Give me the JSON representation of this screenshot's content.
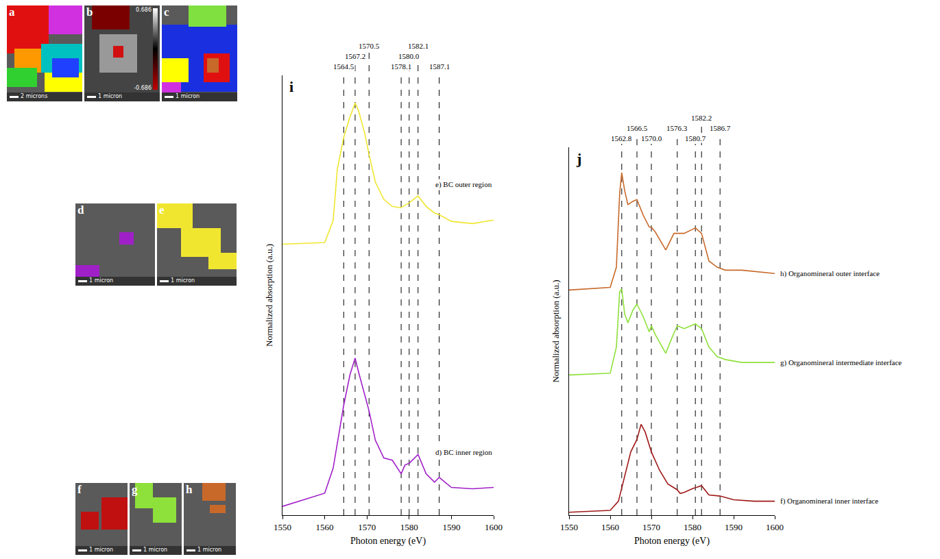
{
  "chart_data": [
    {
      "panel": "i",
      "type": "line",
      "xlabel": "Photon energy (eV)",
      "ylabel": "Normalized absorption (a.u.)",
      "xlim": [
        1550,
        1600
      ],
      "xticks": [
        1550,
        1560,
        1570,
        1580,
        1590,
        1600
      ],
      "ylim": [
        0,
        10
      ],
      "yticks": [],
      "tick_labels": "x",
      "grid": false,
      "reference_lines": [
        {
          "value": 1564.5,
          "label": "1564.5"
        },
        {
          "value": 1567.2,
          "label": "1567.2"
        },
        {
          "value": 1570.5,
          "label": "1570.5"
        },
        {
          "value": 1578.1,
          "label": "1578.1"
        },
        {
          "value": 1580.0,
          "label": "1580.0"
        },
        {
          "value": 1582.1,
          "label": "1582.1"
        },
        {
          "value": 1587.1,
          "label": "1587.1"
        }
      ],
      "series": [
        {
          "name": "e) BC outer region",
          "color": "#f0e630",
          "line_style": "solid",
          "x": [
            1550,
            1560,
            1562,
            1563,
            1564.5,
            1566,
            1567.2,
            1568,
            1569.5,
            1570.5,
            1572,
            1574,
            1576,
            1578,
            1580,
            1582.1,
            1584,
            1586,
            1587.1,
            1590,
            1595,
            1600
          ],
          "values": [
            6.16,
            6.2,
            6.7,
            7.88,
            8.59,
            9.06,
            9.37,
            9.2,
            8.67,
            8.2,
            7.57,
            7.18,
            7.02,
            6.99,
            7.1,
            7.26,
            7.02,
            6.87,
            6.83,
            6.68,
            6.63,
            6.71
          ]
        },
        {
          "name": "d) BC inner region",
          "color": "#a020c8",
          "line_style": "solid",
          "x": [
            1550,
            1560,
            1562,
            1564.5,
            1566,
            1567.2,
            1568,
            1570.5,
            1572,
            1574,
            1576,
            1578.1,
            1579,
            1580,
            1582.1,
            1584,
            1586,
            1587.1,
            1590,
            1595,
            1600
          ],
          "values": [
            0.2,
            0.5,
            1.07,
            2.5,
            3.2,
            3.57,
            3.26,
            2.37,
            1.7,
            1.3,
            1.25,
            0.94,
            1.14,
            1.18,
            1.38,
            0.94,
            0.75,
            0.86,
            0.63,
            0.6,
            0.63
          ]
        }
      ]
    },
    {
      "panel": "j",
      "type": "line",
      "xlabel": "Photon energy (eV)",
      "ylabel": "Normalized absorption (a.u.)",
      "xlim": [
        1550,
        1600
      ],
      "xticks": [
        1550,
        1560,
        1570,
        1580,
        1590,
        1600
      ],
      "ylim": [
        0,
        10
      ],
      "yticks": [],
      "tick_labels": "x",
      "grid": false,
      "reference_lines": [
        {
          "value": 1562.8,
          "label": "1562.8"
        },
        {
          "value": 1566.5,
          "label": "1566.5"
        },
        {
          "value": 1570.0,
          "label": "1570.0"
        },
        {
          "value": 1576.3,
          "label": "1576.3"
        },
        {
          "value": 1580.7,
          "label": "1580.7"
        },
        {
          "value": 1582.2,
          "label": "1582.2"
        },
        {
          "value": 1586.7,
          "label": "1586.7"
        }
      ],
      "series": [
        {
          "name": "h) Organomineral outer interface",
          "color": "#c8692a",
          "line_style": "solid",
          "x": [
            1550,
            1560,
            1561.5,
            1562.3,
            1562.8,
            1563.5,
            1564.3,
            1565.5,
            1566.5,
            1568,
            1569.5,
            1570,
            1571,
            1573.5,
            1575.5,
            1576.3,
            1578,
            1580.7,
            1582.2,
            1584,
            1586,
            1588,
            1592,
            1600
          ],
          "values": [
            6.12,
            6.19,
            6.74,
            8.75,
            9.31,
            8.83,
            8.44,
            8.53,
            8.58,
            8.16,
            7.83,
            7.83,
            7.69,
            7.21,
            7.66,
            7.66,
            7.66,
            7.81,
            7.66,
            6.91,
            6.74,
            6.66,
            6.66,
            6.57
          ]
        },
        {
          "name": "g) Organomineral intermediate interface",
          "color": "#8ee03a",
          "line_style": "solid",
          "x": [
            1550,
            1560,
            1561.5,
            1562.3,
            1562.8,
            1563.5,
            1564.3,
            1565.5,
            1566.5,
            1568,
            1569.5,
            1570,
            1571,
            1573.5,
            1575,
            1576.3,
            1578,
            1580.7,
            1582.2,
            1584,
            1586,
            1588,
            1592,
            1600
          ],
          "values": [
            3.81,
            3.86,
            4.57,
            6.07,
            6.15,
            5.48,
            5.23,
            5.57,
            5.74,
            5.4,
            4.98,
            5.15,
            4.9,
            4.4,
            4.82,
            5.15,
            5.07,
            5.2,
            5.07,
            4.57,
            4.31,
            4.23,
            4.15,
            4.15
          ]
        },
        {
          "name": "f) Organomineral inner interface",
          "color": "#a01818",
          "line_style": "solid",
          "x": [
            1550,
            1560,
            1562,
            1563.5,
            1565,
            1566.5,
            1567.5,
            1568.5,
            1569.5,
            1570,
            1572,
            1574,
            1576.3,
            1577,
            1578,
            1580,
            1582.2,
            1584,
            1586.7,
            1590,
            1595,
            1600
          ],
          "values": [
            0.08,
            0.13,
            0.38,
            1.05,
            1.72,
            2.06,
            2.47,
            2.26,
            1.89,
            1.72,
            1.22,
            0.85,
            0.69,
            0.59,
            0.62,
            0.72,
            0.8,
            0.55,
            0.52,
            0.42,
            0.38,
            0.38
          ]
        }
      ]
    }
  ],
  "image_panels": [
    {
      "letter": "a",
      "scale_bar": "2 microns"
    },
    {
      "letter": "b",
      "scale_bar": "1 micron",
      "colorbar": {
        "max": 0.686,
        "min": -0.686
      }
    },
    {
      "letter": "c",
      "scale_bar": "1 micron"
    },
    {
      "letter": "d",
      "scale_bar": "1 micron"
    },
    {
      "letter": "e",
      "scale_bar": "1 micron"
    },
    {
      "letter": "f",
      "scale_bar": "1 micron"
    },
    {
      "letter": "g",
      "scale_bar": "1 micron"
    },
    {
      "letter": "h",
      "scale_bar": "1 micron"
    }
  ]
}
